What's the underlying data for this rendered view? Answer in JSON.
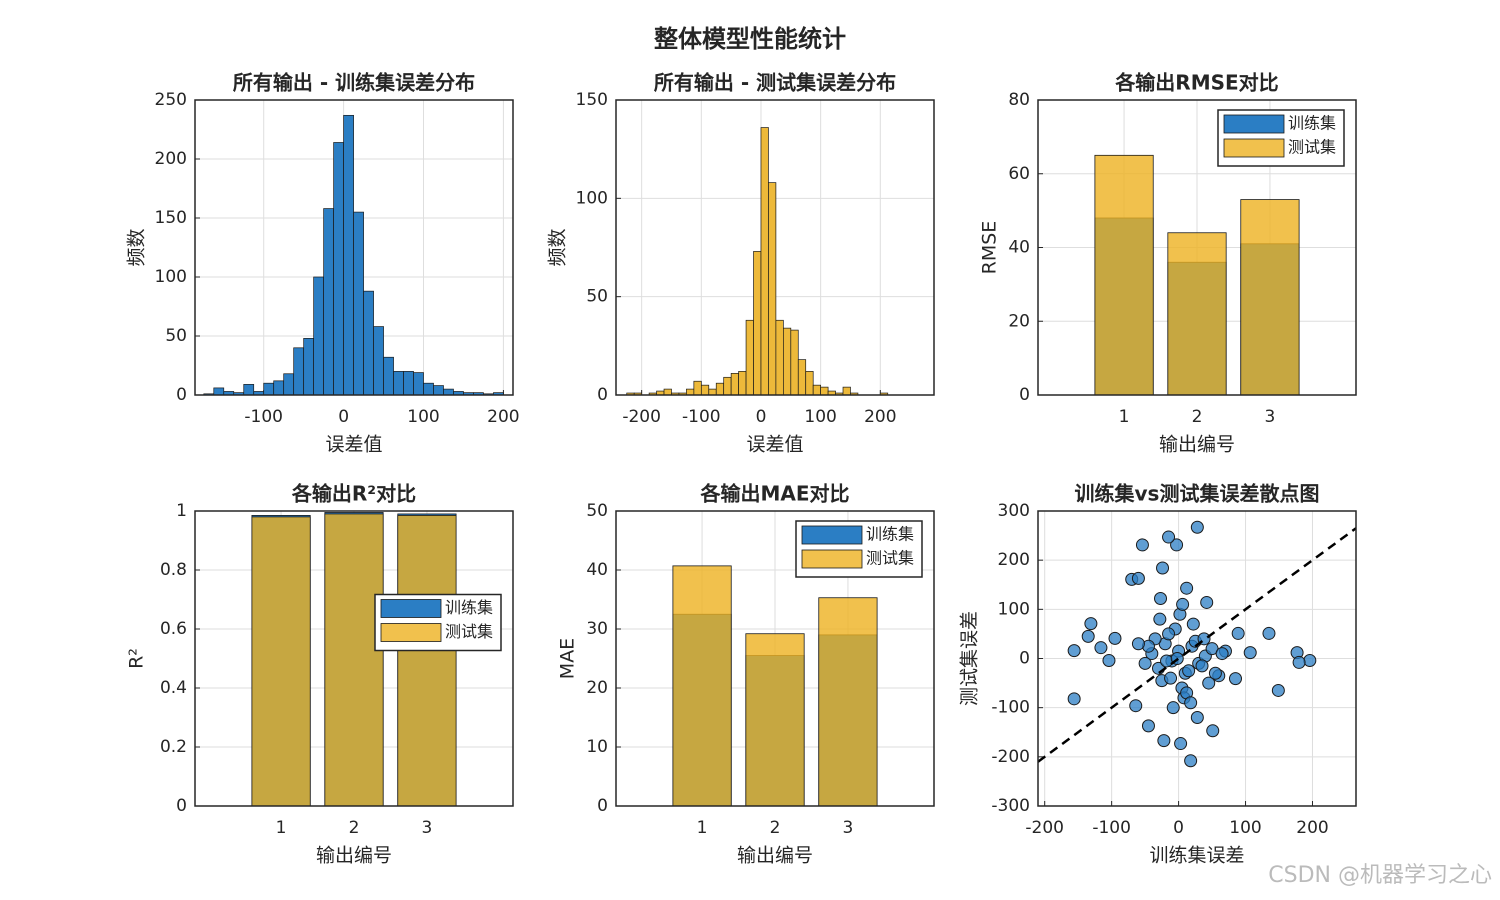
{
  "title": "整体模型性能统计",
  "watermark": "CSDN @机器学习之心",
  "chart_data": [
    {
      "type": "histogram",
      "title": "所有输出 - 训练集误差分布",
      "xlabel": "误差值",
      "ylabel": "频数",
      "bins": [
        -175,
        -162.5,
        -150,
        -137.5,
        -125,
        -112.5,
        -100,
        -87.5,
        -75,
        -62.5,
        -50,
        -37.5,
        -25,
        -12.5,
        0,
        12.5,
        25,
        37.5,
        50,
        62.5,
        75,
        87.5,
        100,
        112.5,
        125,
        137.5,
        150,
        162.5,
        175,
        187.5,
        200
      ],
      "counts": [
        1,
        6,
        3,
        2,
        9,
        3,
        10,
        12,
        18,
        40,
        48,
        100,
        158,
        214,
        237,
        155,
        88,
        58,
        32,
        20,
        20,
        19,
        10,
        8,
        5,
        3,
        2,
        2,
        1,
        2
      ],
      "color": "#2b7ec4",
      "xlim": [
        -186,
        212
      ],
      "xticks": [
        -100,
        0,
        100,
        200
      ],
      "ylim": [
        0,
        250
      ],
      "yticks": [
        0,
        50,
        100,
        150,
        200,
        250
      ],
      "grid": true
    },
    {
      "type": "histogram",
      "title": "所有输出 - 测试集误差分布",
      "xlabel": "误差值",
      "ylabel": "频数",
      "bins": [
        -225,
        -212.5,
        -200,
        -187.5,
        -175,
        -162.5,
        -150,
        -137.5,
        -125,
        -112.5,
        -100,
        -87.5,
        -75,
        -62.5,
        -50,
        -37.5,
        -25,
        -12.5,
        0,
        12.5,
        25,
        37.5,
        50,
        62.5,
        75,
        87.5,
        100,
        112.5,
        125,
        137.5,
        150,
        162.5,
        175,
        187.5,
        200,
        212.5,
        225
      ],
      "counts": [
        1,
        1,
        0,
        1,
        2,
        3,
        1,
        1,
        3,
        7,
        5,
        3,
        6,
        9,
        11,
        12,
        38,
        73,
        136,
        108,
        38,
        34,
        33,
        18,
        12,
        5,
        4,
        2,
        1,
        4,
        1,
        0,
        0,
        0,
        1,
        0
      ],
      "color": "#edb93a",
      "xlim": [
        -243,
        290
      ],
      "xticks": [
        -200,
        -100,
        0,
        100,
        200
      ],
      "ylim": [
        0,
        150
      ],
      "yticks": [
        0,
        50,
        100,
        150
      ],
      "grid": true
    },
    {
      "type": "bar",
      "title": "各输出RMSE对比",
      "xlabel": "输出编号",
      "ylabel": "RMSE",
      "x": [
        1,
        2,
        3
      ],
      "series": [
        {
          "name": "训练集",
          "color": "#2b7ec4",
          "values": [
            48,
            36,
            41
          ]
        },
        {
          "name": "测试集",
          "color": "#edb120",
          "alpha": 0.8,
          "values": [
            65,
            44,
            53
          ]
        }
      ],
      "xlim": [
        -0.18,
        4.18
      ],
      "xticks": [
        1,
        2,
        3
      ],
      "ylim": [
        0,
        80
      ],
      "yticks": [
        0,
        20,
        40,
        60,
        80
      ],
      "grid": true,
      "legend": "northeast"
    },
    {
      "type": "bar",
      "title": "各输出R²对比",
      "xlabel": "输出编号",
      "ylabel": "R²",
      "x": [
        1,
        2,
        3
      ],
      "series": [
        {
          "name": "训练集",
          "color": "#2b7ec4",
          "values": [
            0.985,
            0.995,
            0.99
          ]
        },
        {
          "name": "测试集",
          "color": "#edb120",
          "alpha": 0.8,
          "values": [
            0.98,
            0.99,
            0.985
          ]
        }
      ],
      "xlim": [
        -0.18,
        4.18
      ],
      "xticks": [
        1,
        2,
        3
      ],
      "ylim": [
        0,
        1
      ],
      "yticks": [
        0,
        0.2,
        0.4,
        0.6,
        0.8,
        1
      ],
      "grid": true,
      "legend": "east"
    },
    {
      "type": "bar",
      "title": "各输出MAE对比",
      "xlabel": "输出编号",
      "ylabel": "MAE",
      "x": [
        1,
        2,
        3
      ],
      "series": [
        {
          "name": "训练集",
          "color": "#2b7ec4",
          "values": [
            32.5,
            25.5,
            29
          ]
        },
        {
          "name": "测试集",
          "color": "#edb120",
          "alpha": 0.8,
          "values": [
            40.7,
            29.2,
            35.3
          ]
        }
      ],
      "xlim": [
        -0.18,
        4.18
      ],
      "xticks": [
        1,
        2,
        3
      ],
      "ylim": [
        0,
        50
      ],
      "yticks": [
        0,
        10,
        20,
        30,
        40,
        50
      ],
      "grid": true,
      "legend": "northeast"
    },
    {
      "type": "scatter",
      "title": "训练集vs测试集误差散点图",
      "xlabel": "训练集误差",
      "ylabel": "测试集误差",
      "x": [
        -54,
        -3,
        28,
        -15,
        -24,
        -70,
        -60,
        -131,
        -135,
        -156,
        -156,
        -95,
        177,
        196,
        180,
        149,
        135,
        18,
        3,
        -22,
        51,
        85,
        107,
        89,
        42,
        12,
        -27,
        -45,
        -64,
        -104,
        -116,
        -40,
        -30,
        -20,
        -10,
        0,
        10,
        20,
        30,
        40,
        -35,
        -25,
        -5,
        5,
        15,
        25,
        35,
        50,
        60,
        -50,
        -45,
        -15,
        8,
        22,
        45,
        70,
        -8,
        2,
        12,
        -18,
        28,
        -60,
        55,
        65,
        -28,
        18,
        38,
        -2,
        6,
        -12
      ],
      "values": [
        231,
        231,
        267,
        247,
        184,
        161,
        163,
        71,
        45,
        16,
        -82,
        41,
        12,
        -4,
        -8,
        -65,
        51,
        -208,
        -173,
        -167,
        -147,
        -41,
        12,
        51,
        114,
        143,
        122,
        -137,
        -96,
        -4,
        22,
        10,
        -20,
        30,
        -5,
        15,
        -30,
        25,
        -10,
        5,
        40,
        -45,
        60,
        -60,
        -25,
        35,
        -15,
        20,
        -35,
        -10,
        25,
        50,
        -80,
        70,
        -50,
        15,
        -100,
        90,
        -70,
        -5,
        -120,
        30,
        -30,
        10,
        80,
        -90,
        40,
        0,
        110,
        -40
      ],
      "color": "#2b7ec4",
      "alpha": 0.75,
      "xlim": [
        -210,
        265
      ],
      "xticks": [
        -200,
        -100,
        0,
        100,
        200
      ],
      "ylim": [
        -300,
        300
      ],
      "yticks": [
        -300,
        -200,
        -100,
        0,
        100,
        200,
        300
      ],
      "grid": true
    }
  ]
}
